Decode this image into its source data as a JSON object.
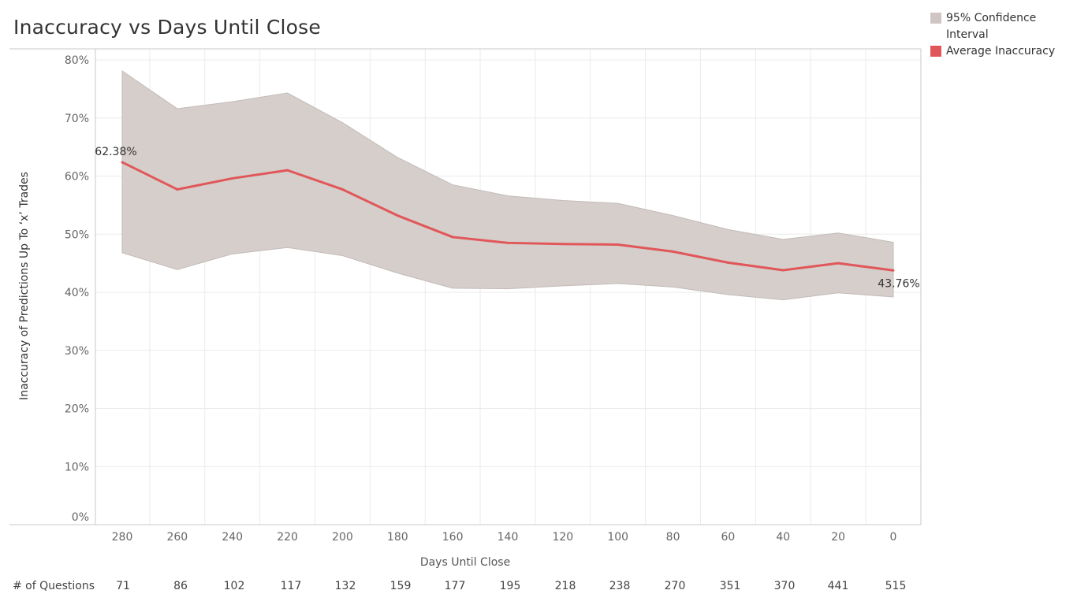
{
  "colors": {
    "band": "#d5cecb",
    "band_edge": "#c3bbb8",
    "line": "#e15759",
    "grid": "#ebebeb",
    "axis": "#c8c8c8",
    "tick_text": "#666666"
  },
  "chart_data": {
    "type": "area",
    "title": "Inaccuracy vs Days Until Close",
    "xlabel": "Days Until Close",
    "ylabel": "Inaccuracy of Predictions Up To ‘x’ Trades",
    "x": [
      280,
      260,
      240,
      220,
      200,
      180,
      160,
      140,
      120,
      100,
      80,
      60,
      40,
      20,
      0
    ],
    "x_ticks": [
      "280",
      "260",
      "240",
      "220",
      "200",
      "180",
      "160",
      "140",
      "120",
      "100",
      "80",
      "60",
      "40",
      "20",
      "0"
    ],
    "y_ticks": [
      "0%",
      "10%",
      "20%",
      "30%",
      "40%",
      "50%",
      "60%",
      "70%",
      "80%"
    ],
    "ylim": [
      0,
      0.8
    ],
    "grid": true,
    "legend_position": "top-right",
    "legend": [
      {
        "label": "95% Confidence Interval",
        "color": "#cfc6c3"
      },
      {
        "label": "Average Inaccuracy",
        "color": "#e15759"
      }
    ],
    "series": [
      {
        "name": "Average Inaccuracy",
        "values": [
          0.6238,
          0.577,
          0.596,
          0.61,
          0.577,
          0.532,
          0.495,
          0.485,
          0.483,
          0.482,
          0.47,
          0.451,
          0.438,
          0.45,
          0.4376
        ]
      },
      {
        "name": "95% Confidence Interval",
        "upper": [
          0.781,
          0.716,
          0.728,
          0.743,
          0.692,
          0.632,
          0.585,
          0.566,
          0.558,
          0.553,
          0.532,
          0.508,
          0.491,
          0.502,
          0.486
        ],
        "lower": [
          0.468,
          0.439,
          0.466,
          0.477,
          0.463,
          0.433,
          0.407,
          0.406,
          0.411,
          0.415,
          0.409,
          0.396,
          0.387,
          0.399,
          0.392
        ]
      }
    ],
    "annotations": [
      {
        "index": 0,
        "text": "62.38%"
      },
      {
        "index": 14,
        "text": "43.76%"
      }
    ],
    "questions_label": "# of Questions",
    "questions": [
      "71",
      "86",
      "102",
      "117",
      "132",
      "159",
      "177",
      "195",
      "218",
      "238",
      "270",
      "351",
      "370",
      "441",
      "515"
    ]
  }
}
